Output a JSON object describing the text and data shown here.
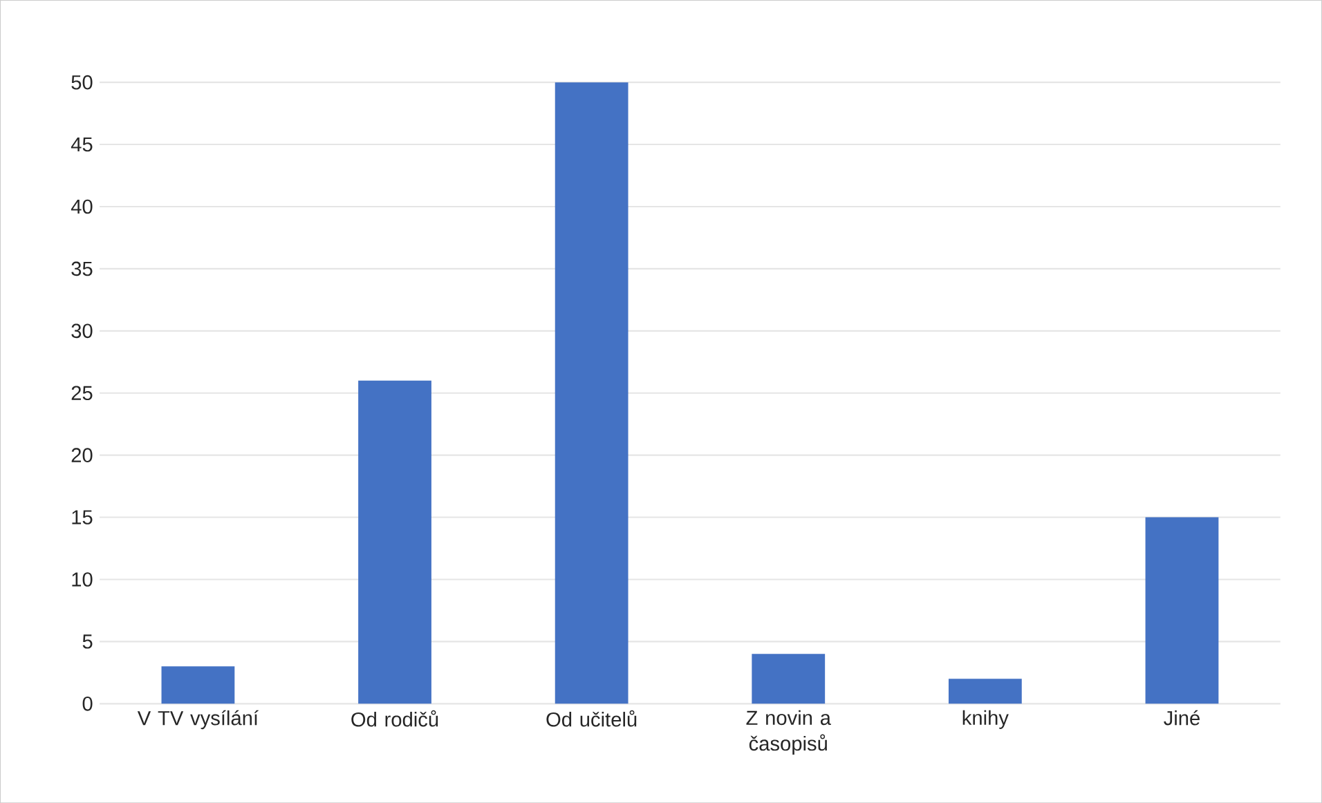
{
  "chart_data": {
    "type": "bar",
    "categories": [
      "V TV vysílání",
      "Od rodičů",
      "Od učitelů",
      "Z novin a časopisů",
      "knihy",
      "Jiné"
    ],
    "values": [
      3,
      26,
      50,
      4,
      2,
      15
    ],
    "color": "#4472c4",
    "ylim": [
      0,
      50
    ],
    "yticks": [
      0,
      5,
      10,
      15,
      20,
      25,
      30,
      35,
      40,
      45,
      50
    ],
    "grid": "y"
  }
}
